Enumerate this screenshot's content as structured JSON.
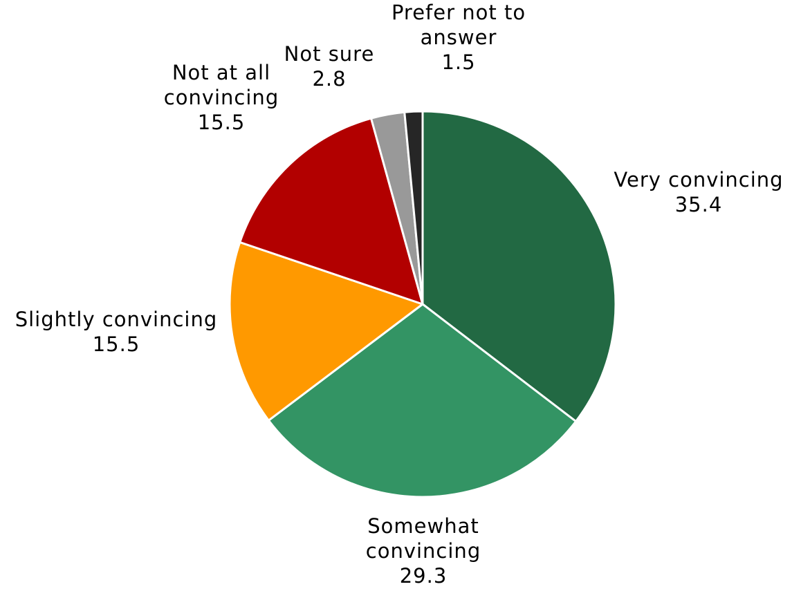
{
  "chart_data": {
    "type": "pie",
    "slices": [
      {
        "label_lines": [
          "Very convincing"
        ],
        "value": 35.4,
        "value_text": "35.4",
        "color": "#226943"
      },
      {
        "label_lines": [
          "Somewhat",
          "convincing"
        ],
        "value": 29.3,
        "value_text": "29.3",
        "color": "#339464"
      },
      {
        "label_lines": [
          "Slightly convincing"
        ],
        "value": 15.5,
        "value_text": "15.5",
        "color": "#FF9900"
      },
      {
        "label_lines": [
          "Not at all",
          "convincing"
        ],
        "value": 15.5,
        "value_text": "15.5",
        "color": "#B20000"
      },
      {
        "label_lines": [
          "Not sure"
        ],
        "value": 2.8,
        "value_text": "2.8",
        "color": "#999999"
      },
      {
        "label_lines": [
          "Prefer not to",
          "answer"
        ],
        "value": 1.5,
        "value_text": "1.5",
        "color": "#262626"
      }
    ],
    "start_angle_deg": 0,
    "direction": "clockwise",
    "legend": "none",
    "data_labels": "outside"
  }
}
